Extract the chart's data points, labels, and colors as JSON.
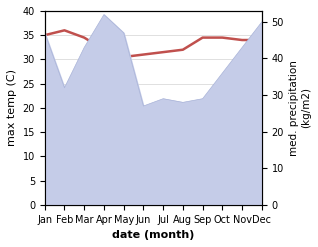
{
  "months": [
    "Jan",
    "Feb",
    "Mar",
    "Apr",
    "May",
    "Jun",
    "Jul",
    "Aug",
    "Sep",
    "Oct",
    "Nov",
    "Dec"
  ],
  "month_x": [
    0,
    1,
    2,
    3,
    4,
    5,
    6,
    7,
    8,
    9,
    10,
    11
  ],
  "temperature": [
    35.0,
    36.0,
    34.5,
    32.0,
    30.5,
    31.0,
    31.5,
    32.0,
    34.5,
    34.5,
    34.0,
    34.0
  ],
  "precipitation": [
    47,
    32,
    43,
    52,
    47,
    27,
    29,
    28,
    29,
    36,
    43,
    50
  ],
  "temp_color": "#c0504d",
  "precip_fill_color": "#c5cce8",
  "precip_line_color": "#aab4d8",
  "ylabel_left": "max temp (C)",
  "ylabel_right": "med. precipitation\n(kg/m2)",
  "xlabel": "date (month)",
  "ylim_left": [
    0,
    40
  ],
  "ylim_right": [
    0,
    53
  ],
  "temp_lw": 1.8,
  "background_color": "#ffffff"
}
